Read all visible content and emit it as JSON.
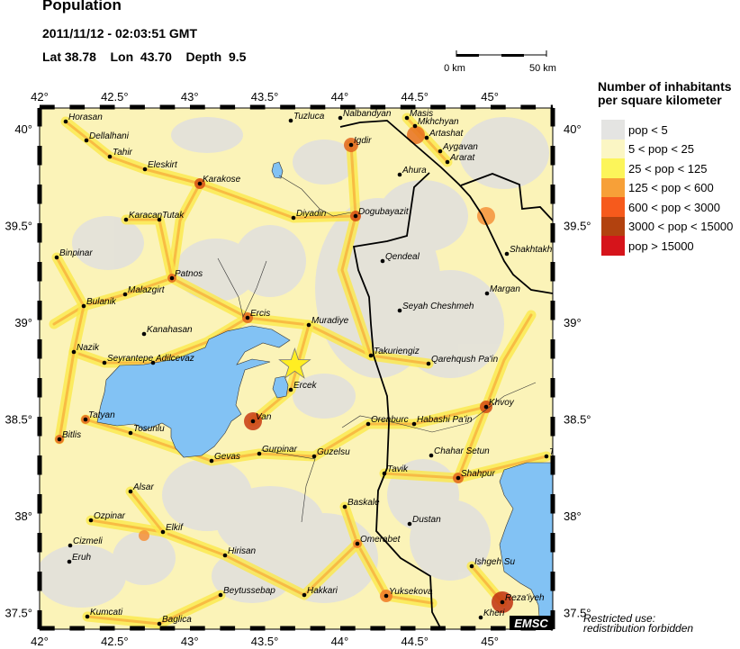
{
  "header": {
    "title": "Population",
    "datetime": "2011/11/12 - 02:03:51 GMT",
    "coords": "Lat 38.78    Lon  43.70    Depth  9.5"
  },
  "scale_bar": {
    "start": "0 km",
    "end": "50 km"
  },
  "axes": {
    "lon_ticks": [
      "42°",
      "42.5°",
      "43°",
      "43.5°",
      "44°",
      "44.5°",
      "45°"
    ],
    "lat_ticks": [
      "40°",
      "39.5°",
      "39°",
      "38.5°",
      "38°",
      "37.5°"
    ]
  },
  "legend": {
    "title_line1": "Number of inhabitants",
    "title_line2": "per square kilometer",
    "items": [
      {
        "label": "pop < 5",
        "color": "#e4e4e2"
      },
      {
        "label": "5 < pop < 25",
        "color": "#fbf6c4"
      },
      {
        "label": "25 < pop < 125",
        "color": "#fcf55a"
      },
      {
        "label": "125 < pop < 600",
        "color": "#f7a038"
      },
      {
        "label": "600 < pop < 3000",
        "color": "#f65a1c"
      },
      {
        "label": "3000 < pop < 15000",
        "color": "#b2420f"
      },
      {
        "label": "pop > 15000",
        "color": "#d6141b"
      }
    ]
  },
  "epicenter": {
    "lat": 38.78,
    "lon": 43.7,
    "color": "#ffee22"
  },
  "water_color": "#82c2f4",
  "cities": [
    "Horasan",
    "Dellalhani",
    "Tahir",
    "Eleskirt",
    "Karakose",
    "Karacan",
    "Tutak",
    "Binpinar",
    "Patnos",
    "Malazgirt",
    "Bulanik",
    "Kanahasan",
    "Nazik",
    "Seyrantepe",
    "Adilcevaz",
    "Ercis",
    "Muradiye",
    "Tuzluca",
    "Nalbandyan",
    "Igdir",
    "Diyadin",
    "Dogubayazit",
    "Masis",
    "Mkhchyan",
    "Artashat",
    "Aygavan",
    "Ararat",
    "Ahura",
    "Shakhtakht",
    "Qendeal",
    "Margan",
    "Seyah Cheshmeh",
    "Takuriengiz",
    "Qarehqush Pa'in",
    "Ercek",
    "Van",
    "Tatyan",
    "Bitlis",
    "Tosunlu",
    "Gevas",
    "Gurpinar",
    "Guzelsu",
    "Orenburc",
    "Habashi Pa'in",
    "Khvoy",
    "Chahar Setun",
    "T",
    "Tavik",
    "Shahpur",
    "Alsar",
    "Baskale",
    "Ozpinar",
    "Elkif",
    "Dustan",
    "Omerabet",
    "Cizmeli",
    "Eruh",
    "Hirisan",
    "Ishgeh Su",
    "Beytussebap",
    "Hakkari",
    "Yuksekova",
    "Reza'iyeh",
    "Kheri",
    "Kumcati",
    "Baglica"
  ],
  "logo": "EMSC",
  "note_line1": "Restricted use:",
  "note_line2": "redistribution forbidden"
}
